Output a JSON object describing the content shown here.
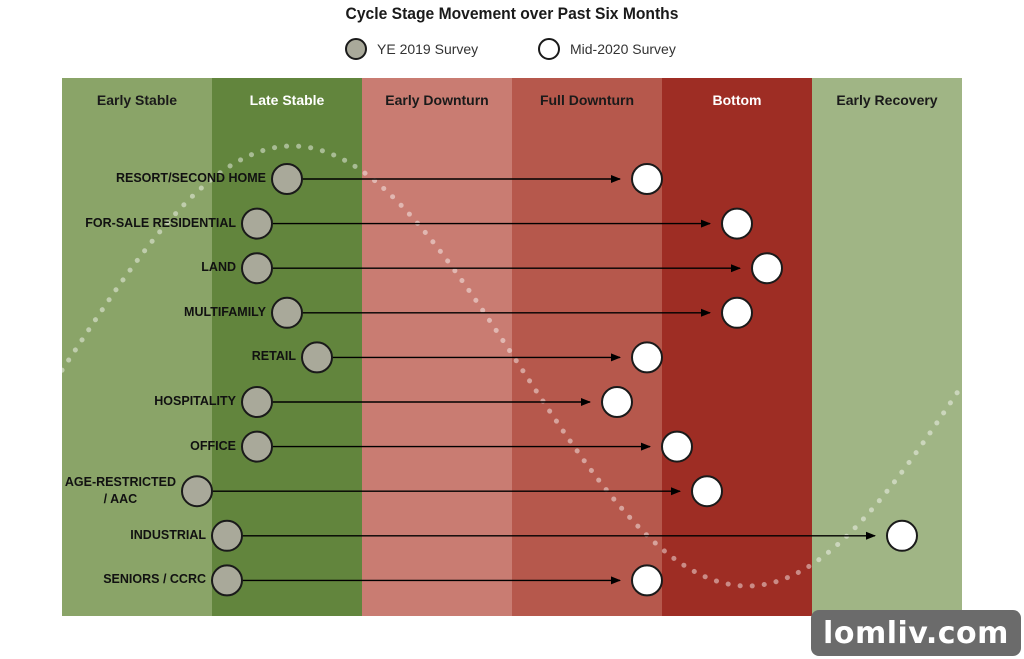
{
  "chart_data": {
    "type": "scatter",
    "title": "Cycle Stage Movement over Past Six Months",
    "legend": [
      {
        "name": "YE 2019 Survey",
        "fill": "#a9a99a"
      },
      {
        "name": "Mid-2020 Survey",
        "fill": "#ffffff"
      }
    ],
    "legend_position": "top",
    "stages": [
      {
        "name": "Early Stable",
        "color": "#8aa468",
        "text_color": "#1a1a1a"
      },
      {
        "name": "Late Stable",
        "color": "#62853d",
        "text_color": "#ffffff"
      },
      {
        "name": "Early Downturn",
        "color": "#c97c72",
        "text_color": "#1a1a1a"
      },
      {
        "name": "Full Downturn",
        "color": "#b6584c",
        "text_color": "#1a1a1a"
      },
      {
        "name": "Bottom",
        "color": "#9e2d24",
        "text_color": "#ffffff"
      },
      {
        "name": "Early Recovery",
        "color": "#a0b585",
        "text_color": "#1a1a1a"
      }
    ],
    "x_unit": "cycle stage position (0-6, one unit per stage)",
    "series": [
      {
        "category": "RESORT/SECOND HOME",
        "ye2019": 1.5,
        "mid2020": 3.9
      },
      {
        "category": "FOR-SALE RESIDENTIAL",
        "ye2019": 1.3,
        "mid2020": 4.5
      },
      {
        "category": "LAND",
        "ye2019": 1.3,
        "mid2020": 4.7
      },
      {
        "category": "MULTIFAMILY",
        "ye2019": 1.5,
        "mid2020": 4.5
      },
      {
        "category": "RETAIL",
        "ye2019": 1.7,
        "mid2020": 3.9
      },
      {
        "category": "HOSPITALITY",
        "ye2019": 1.3,
        "mid2020": 3.7
      },
      {
        "category": "OFFICE",
        "ye2019": 1.3,
        "mid2020": 4.1
      },
      {
        "category": "AGE-RESTRICTED / AAC",
        "ye2019": 0.9,
        "mid2020": 4.3
      },
      {
        "category": "INDUSTRIAL",
        "ye2019": 1.1,
        "mid2020": 5.6
      },
      {
        "category": "SENIORS / CCRC",
        "ye2019": 1.1,
        "mid2020": 3.9
      }
    ]
  },
  "watermark": "lomliv.com"
}
